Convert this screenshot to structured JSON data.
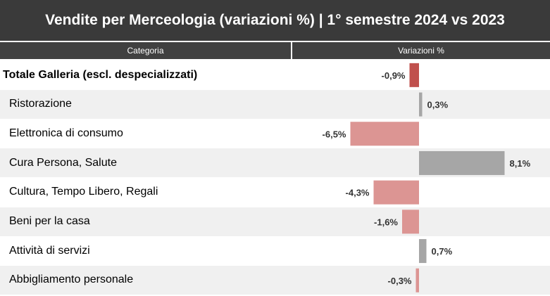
{
  "title": "Vendite per Merceologia (variazioni %) | 1° semestre 2024 vs 2023",
  "header": {
    "category_label": "Categoria",
    "variation_label": "Variazioni %"
  },
  "colors": {
    "title_bg": "#3a3a3a",
    "header_bg": "#404040",
    "row_alt_bg": "#f0f0f0",
    "total_negative": "#c0504d",
    "negative": "#dc9593",
    "positive": "#a6a6a6"
  },
  "chart_data": {
    "type": "bar",
    "orientation": "horizontal",
    "title": "Vendite per Merceologia (variazioni %) | 1° semestre 2024 vs 2023",
    "xlabel": "Variazioni %",
    "ylabel": "Categoria",
    "categories": [
      "Totale Galleria (escl. despecializzati)",
      "Ristorazione",
      "Elettronica di consumo",
      "Cura Persona, Salute",
      "Cultura, Tempo Libero, Regali",
      "Beni per la casa",
      "Attività di servizi",
      "Abbigliamento personale"
    ],
    "values": [
      -0.9,
      0.3,
      -6.5,
      8.1,
      -4.3,
      -1.6,
      0.7,
      -0.3
    ],
    "value_labels": [
      "-0,9%",
      "0,3%",
      "-6,5%",
      "8,1%",
      "-4,3%",
      "-1,6%",
      "0,7%",
      "-0,3%"
    ],
    "highlight_first_row": true,
    "grid": false
  }
}
